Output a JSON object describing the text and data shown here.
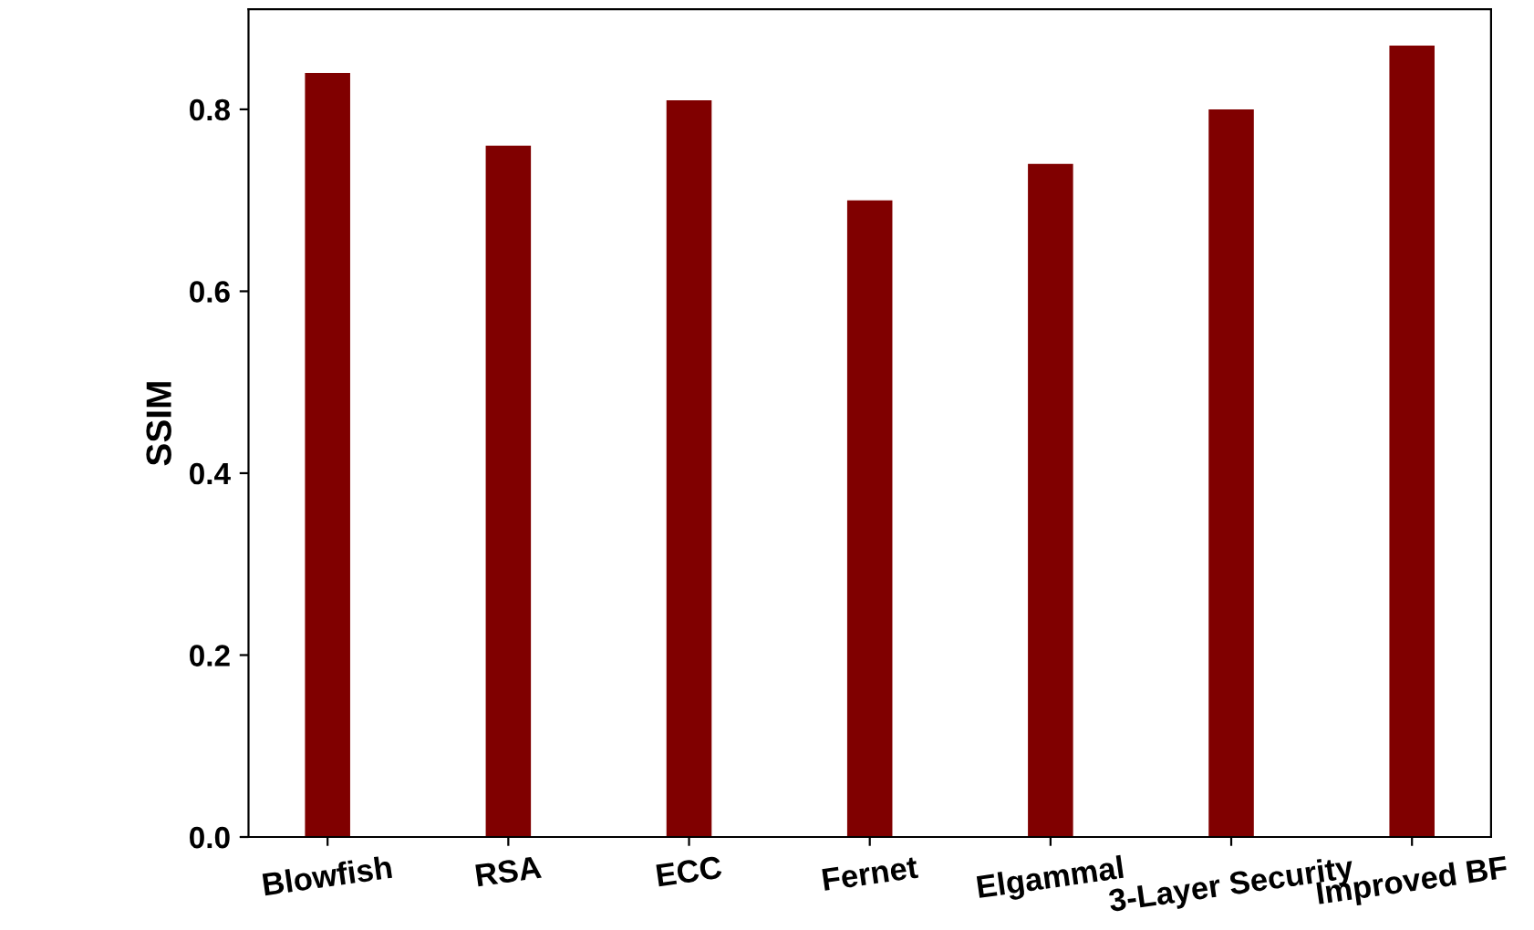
{
  "chart_data": {
    "type": "bar",
    "ylabel": "SSIM",
    "categories": [
      "Blowfish",
      "RSA",
      "ECC",
      "Fernet",
      "Elgammal",
      "3-Layer Security",
      "Improved BF"
    ],
    "values": [
      0.84,
      0.76,
      0.81,
      0.7,
      0.74,
      0.8,
      0.87
    ],
    "color": "#800000",
    "ylim": [
      0,
      0.91
    ],
    "yticks": [
      {
        "value": 0,
        "label": "0.0"
      },
      0.2,
      0.4,
      0.6,
      0.8
    ],
    "grid": false,
    "legend": false
  }
}
